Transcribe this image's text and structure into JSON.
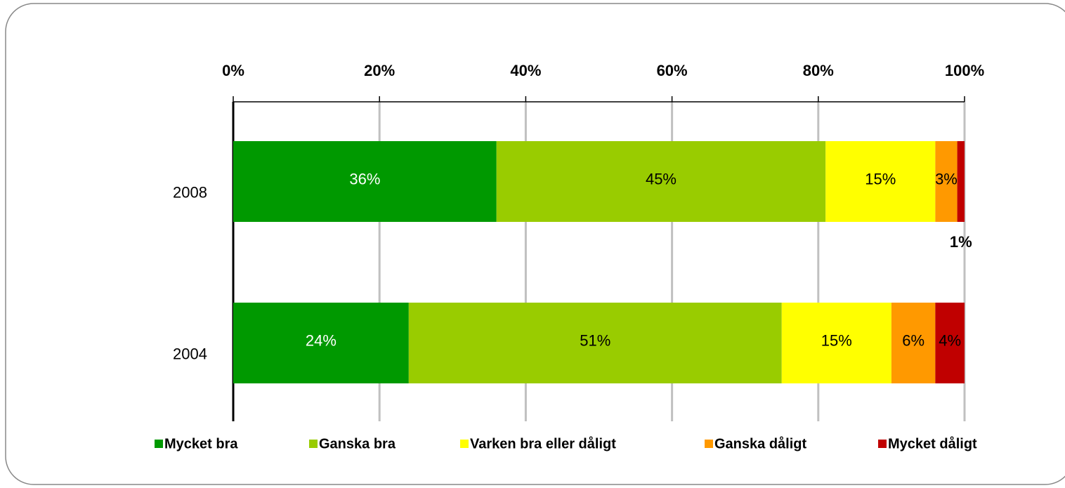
{
  "chart_data": {
    "type": "stacked_barh",
    "categories": [
      "2008",
      "2004"
    ],
    "series": [
      {
        "name": "Mycket bra",
        "color": "#009900",
        "values": [
          36,
          24
        ],
        "value_labels": [
          "36%",
          "24%"
        ]
      },
      {
        "name": "Ganska bra",
        "color": "#99cc00",
        "values": [
          45,
          51
        ],
        "value_labels": [
          "45%",
          "51%"
        ]
      },
      {
        "name": "Varken bra eller dåligt",
        "color": "#ffff00",
        "values": [
          15,
          15
        ],
        "value_labels": [
          "15%",
          "15%"
        ]
      },
      {
        "name": "Ganska dåligt",
        "color": "#ff9900",
        "values": [
          3,
          6
        ],
        "value_labels": [
          "3%",
          "6%"
        ]
      },
      {
        "name": "Mycket dåligt",
        "color": "#c00000",
        "values": [
          1,
          4
        ],
        "value_labels": [
          "1%",
          "4%"
        ]
      }
    ],
    "xlim": [
      0,
      100
    ],
    "xticks": [
      {
        "value": 0,
        "label": "0%"
      },
      {
        "value": 20,
        "label": "20%"
      },
      {
        "value": 40,
        "label": "40%"
      },
      {
        "value": 60,
        "label": "60%"
      },
      {
        "value": 80,
        "label": "80%"
      },
      {
        "value": 100,
        "label": "100%"
      }
    ],
    "grid": true,
    "legend": "bottom"
  }
}
